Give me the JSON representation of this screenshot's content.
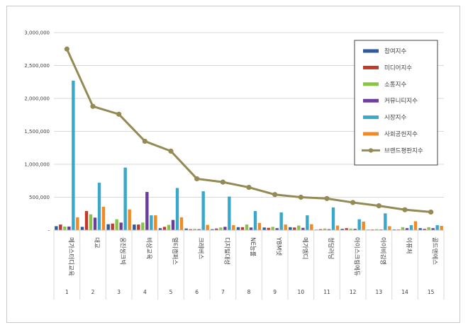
{
  "chart_data": {
    "type": "bar",
    "title": "",
    "xlabel": "",
    "ylabel": "",
    "ylim": [
      0,
      3000000
    ],
    "yticks": [
      0,
      500000,
      1000000,
      1500000,
      2000000,
      2500000,
      3000000
    ],
    "ytick_labels": [
      "-",
      "500,000",
      "1,000,000",
      "1,500,000",
      "2,000,000",
      "2,500,000",
      "3,000,000"
    ],
    "grid": true,
    "legend_position": "right",
    "index_labels": [
      "1",
      "2",
      "3",
      "4",
      "5",
      "6",
      "7",
      "8",
      "9",
      "10",
      "11",
      "12",
      "13",
      "14",
      "15"
    ],
    "categories": [
      "메가스터디교육",
      "대교",
      "웅진씽크빅",
      "비상교육",
      "멀티캠퍼스",
      "크레버스",
      "디지털대성",
      "NE능률",
      "YBM넷",
      "메가엠디",
      "청담러닝",
      "아이스크림에듀",
      "아이비김영",
      "이퓨처",
      "골드앤에스"
    ],
    "series": [
      {
        "name": "참여지수",
        "color": "#2e5a9e",
        "type": "bar",
        "values": [
          60000,
          50000,
          90000,
          85000,
          30000,
          25000,
          15000,
          45000,
          40000,
          45000,
          8000,
          20000,
          8000,
          10000,
          30000
        ]
      },
      {
        "name": "미디어지수",
        "color": "#c0392b",
        "type": "bar",
        "values": [
          85000,
          290000,
          100000,
          85000,
          50000,
          15000,
          25000,
          45000,
          35000,
          40000,
          15000,
          30000,
          10000,
          10000,
          20000
        ]
      },
      {
        "name": "소통지수",
        "color": "#8bc34a",
        "type": "bar",
        "values": [
          55000,
          240000,
          165000,
          115000,
          80000,
          20000,
          40000,
          85000,
          50000,
          70000,
          25000,
          25000,
          15000,
          45000,
          45000
        ]
      },
      {
        "name": "커뮤니티지수",
        "color": "#6a3d9a",
        "type": "bar",
        "values": [
          55000,
          190000,
          115000,
          580000,
          155000,
          15000,
          50000,
          40000,
          30000,
          35000,
          15000,
          20000,
          10000,
          30000,
          30000
        ]
      },
      {
        "name": "시장지수",
        "color": "#3aa9c9",
        "type": "bar",
        "values": [
          2270000,
          720000,
          950000,
          225000,
          640000,
          590000,
          510000,
          290000,
          270000,
          225000,
          345000,
          165000,
          255000,
          75000,
          75000
        ]
      },
      {
        "name": "사회공헌지수",
        "color": "#f08a24",
        "type": "bar",
        "values": [
          195000,
          355000,
          315000,
          225000,
          195000,
          80000,
          75000,
          110000,
          85000,
          90000,
          70000,
          130000,
          60000,
          135000,
          65000
        ]
      }
    ],
    "line_series": {
      "name": "브랜드평판지수",
      "color": "#948a54",
      "type": "line",
      "values": [
        2750000,
        1880000,
        1760000,
        1350000,
        1200000,
        780000,
        730000,
        650000,
        540000,
        500000,
        480000,
        420000,
        370000,
        310000,
        275000
      ]
    }
  }
}
